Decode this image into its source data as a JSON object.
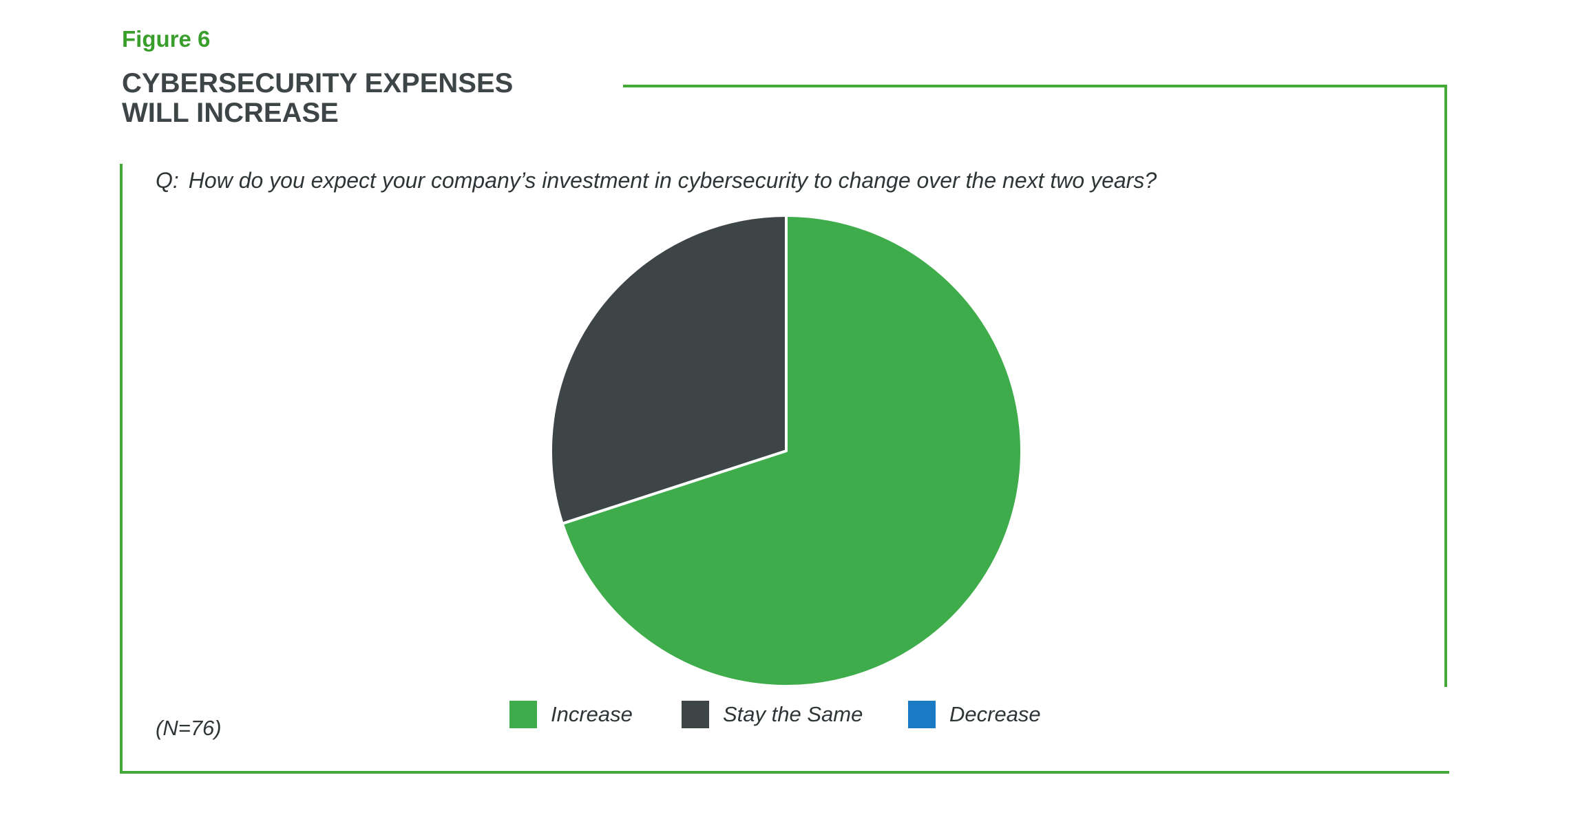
{
  "figure": {
    "label": "Figure 6",
    "title_lines": [
      "CYBERSECURITY EXPENSES",
      "WILL INCREASE"
    ],
    "question_prefix": "Q:",
    "question": "How do you expect your company’s investment in cybersecurity to change over the next two years?",
    "sample_note": "(N=76)"
  },
  "colors": {
    "accent": "#3a9e2c",
    "frame": "#45a93a",
    "title": "#3e4546"
  },
  "chart_data": {
    "type": "pie",
    "title": "CYBERSECURITY EXPENSES WILL INCREASE",
    "start_angle": "12 o'clock",
    "direction": "clockwise",
    "legend_position": "bottom",
    "slices": [
      {
        "label": "Increase",
        "value": 70,
        "color": "#3fac4b"
      },
      {
        "label": "Decrease",
        "value": 0,
        "color": "#1a7bc4"
      },
      {
        "label": "Stay the Same",
        "value": 30,
        "color": "#3e4547"
      }
    ],
    "legend": [
      {
        "label": "Increase",
        "color": "#3fac4b"
      },
      {
        "label": "Stay the Same",
        "color": "#3e4547"
      },
      {
        "label": "Decrease",
        "color": "#1a7bc4"
      }
    ]
  }
}
